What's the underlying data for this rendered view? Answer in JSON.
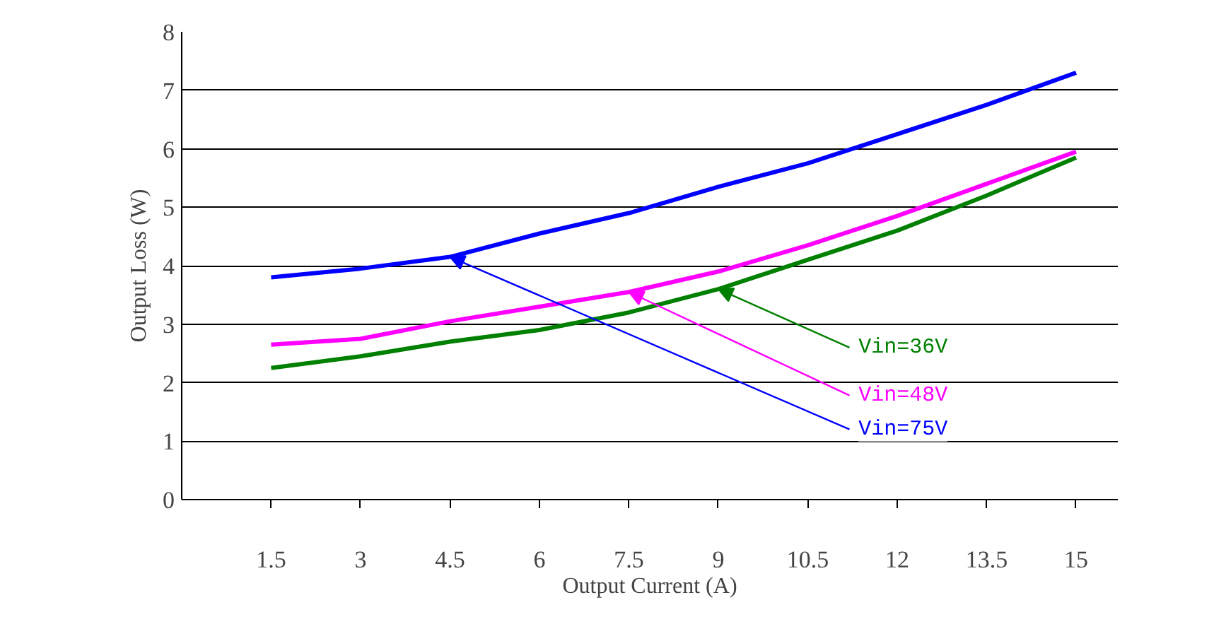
{
  "chart_data": {
    "type": "line",
    "xlabel": "Output Current (A)",
    "ylabel": "Output Loss (W)",
    "x": [
      1.5,
      3,
      4.5,
      6,
      7.5,
      9,
      10.5,
      12,
      13.5,
      15
    ],
    "xlim": [
      0,
      15.7
    ],
    "xticks": [
      1.5,
      3,
      4.5,
      6,
      7.5,
      9,
      10.5,
      12,
      13.5,
      15
    ],
    "ylim": [
      0,
      8
    ],
    "yticks": [
      0,
      1,
      2,
      3,
      4,
      5,
      6,
      7,
      8
    ],
    "grid": "y",
    "marker": "none",
    "line_style": "solid",
    "series": [
      {
        "name": "Vin=36V",
        "color": "#008000",
        "values": [
          2.25,
          2.45,
          2.7,
          2.9,
          3.2,
          3.6,
          4.1,
          4.6,
          5.2,
          5.85
        ]
      },
      {
        "name": "Vin=48V",
        "color": "#ff00ff",
        "values": [
          2.65,
          2.75,
          3.05,
          3.3,
          3.55,
          3.9,
          4.35,
          4.85,
          5.4,
          5.95
        ]
      },
      {
        "name": "Vin=75V",
        "color": "#0000ff",
        "values": [
          3.8,
          3.95,
          4.15,
          4.55,
          4.9,
          5.35,
          5.75,
          6.25,
          6.75,
          7.3
        ]
      }
    ]
  }
}
